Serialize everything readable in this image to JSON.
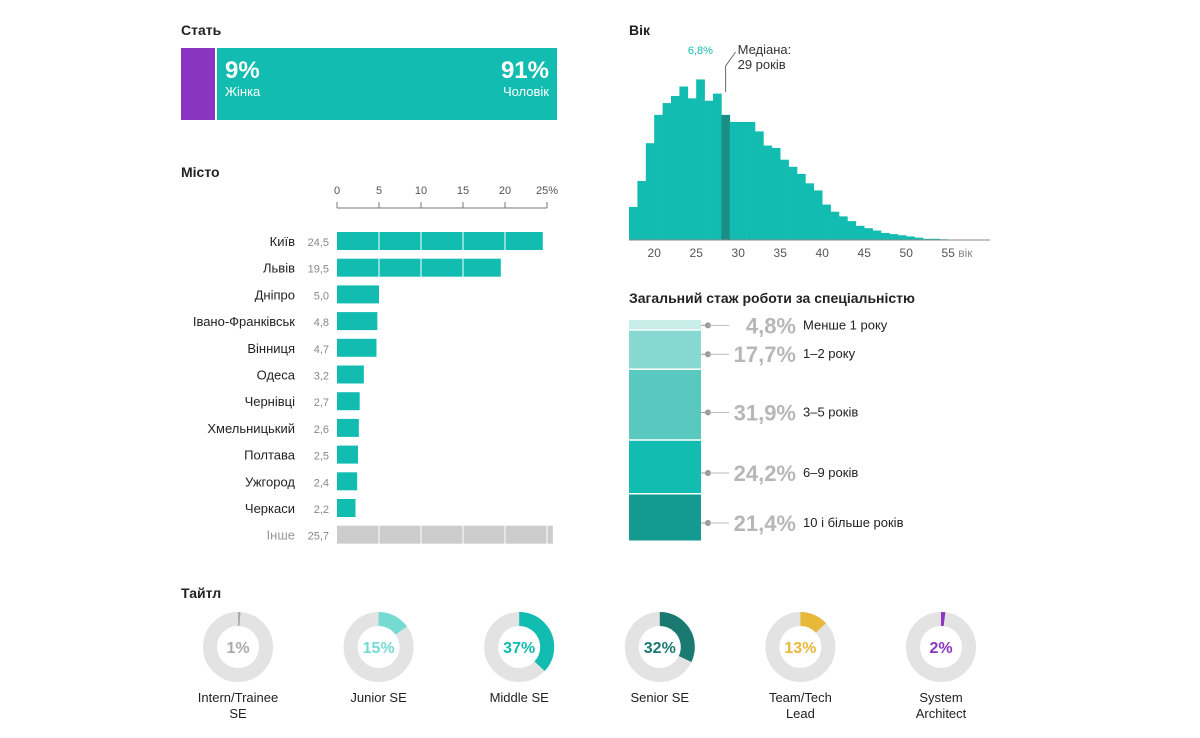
{
  "colors": {
    "teal": "#12bcb0",
    "teal_dark": "#1a8f86",
    "purple": "#8a35c2",
    "grey_bar": "#cccccc",
    "ring_bg": "#e3e3e3",
    "gold": "#e8b83a"
  },
  "chart_data": [
    {
      "id": "gender",
      "type": "bar",
      "title": "Стать",
      "series": [
        {
          "name": "Жінка",
          "value": 9,
          "label": "9%",
          "color": "#8a35c2"
        },
        {
          "name": "Чоловік",
          "value": 91,
          "label": "91%",
          "color": "#12bcb0"
        }
      ]
    },
    {
      "id": "city",
      "type": "bar",
      "title": "Місто",
      "ticks": [
        "0",
        "5",
        "10",
        "15",
        "20",
        "25%"
      ],
      "tick_values": [
        0,
        5,
        10,
        15,
        20,
        25
      ],
      "xlim": [
        0,
        25
      ],
      "categories": [
        "Київ",
        "Львів",
        "Дніпро",
        "Івано-Франківськ",
        "Вінниця",
        "Одеса",
        "Чернівці",
        "Хмельницький",
        "Полтава",
        "Ужгород",
        "Черкаси",
        "Інше"
      ],
      "values": [
        24.5,
        19.5,
        5.0,
        4.8,
        4.7,
        3.2,
        2.7,
        2.6,
        2.5,
        2.4,
        2.2,
        25.7
      ],
      "value_labels": [
        "24,5",
        "19,5",
        "5,0",
        "4,8",
        "4,7",
        "3,2",
        "2,7",
        "2,6",
        "2,5",
        "2,4",
        "2,2",
        "25,7"
      ]
    },
    {
      "id": "age",
      "type": "bar",
      "title": "Вік",
      "x_start": 17,
      "x_end": 58,
      "ticks": [
        "20",
        "25",
        "30",
        "35",
        "40",
        "45",
        "50",
        "55",
        "вік"
      ],
      "tick_values": [
        20,
        25,
        30,
        35,
        40,
        45,
        50,
        55
      ],
      "ylim": [
        0,
        7.2
      ],
      "values": [
        1.4,
        2.5,
        4.1,
        5.3,
        5.8,
        6.1,
        6.5,
        6.0,
        6.8,
        5.9,
        6.2,
        5.3,
        5.0,
        5.0,
        5.0,
        4.6,
        4.0,
        3.9,
        3.4,
        3.1,
        2.8,
        2.4,
        2.1,
        1.5,
        1.2,
        1.0,
        0.8,
        0.6,
        0.5,
        0.4,
        0.3,
        0.25,
        0.2,
        0.15,
        0.1,
        0.05,
        0.05,
        0.03,
        0.02,
        0.01,
        0.01
      ],
      "peak_label": "6,8%",
      "median_index": 11,
      "median_label_line1": "Медіана:",
      "median_label_line2": "29 років"
    },
    {
      "id": "experience",
      "type": "bar",
      "title": "Загальний стаж роботи за спеціальністю",
      "series": [
        {
          "name": "Менше 1 року",
          "value": 4.8,
          "label": "4,8%",
          "color": "#c8ece8"
        },
        {
          "name": "1–2 року",
          "value": 17.7,
          "label": "17,7%",
          "color": "#86d8d1"
        },
        {
          "name": "3–5 років",
          "value": 31.9,
          "label": "31,9%",
          "color": "#59c8bf"
        },
        {
          "name": "6–9 років",
          "value": 24.2,
          "label": "24,2%",
          "color": "#12bcb0"
        },
        {
          "name": "10 і більше років",
          "value": 21.4,
          "label": "21,4%",
          "color": "#139b91"
        }
      ]
    },
    {
      "id": "title",
      "type": "pie",
      "title": "Тайтл",
      "series": [
        {
          "name": "Intern/Trainee SE",
          "lines": [
            "Intern/Trainee",
            "SE"
          ],
          "value": 1,
          "label": "1%",
          "color": "#aaaaaa"
        },
        {
          "name": "Junior SE",
          "lines": [
            "Junior SE"
          ],
          "value": 15,
          "label": "15%",
          "color": "#74dad2"
        },
        {
          "name": "Middle SE",
          "lines": [
            "Middle SE"
          ],
          "value": 37,
          "label": "37%",
          "color": "#12bcb0"
        },
        {
          "name": "Senior SE",
          "lines": [
            "Senior SE"
          ],
          "value": 32,
          "label": "32%",
          "color": "#1a7a72"
        },
        {
          "name": "Team/Tech Lead",
          "lines": [
            "Team/Tech",
            "Lead"
          ],
          "value": 13,
          "label": "13%",
          "color": "#e8b83a"
        },
        {
          "name": "System Architect",
          "lines": [
            "System",
            "Architect"
          ],
          "value": 2,
          "label": "2%",
          "color": "#8a35c2"
        }
      ]
    }
  ]
}
